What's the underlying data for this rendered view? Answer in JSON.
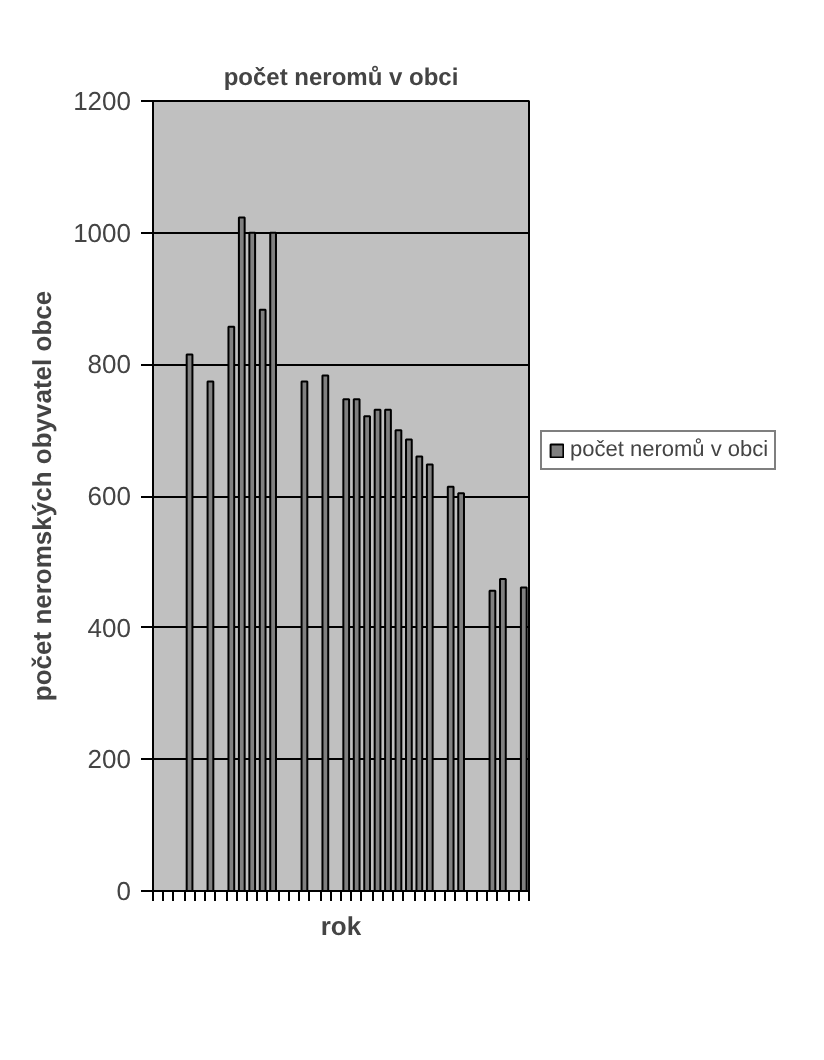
{
  "chart_data": {
    "type": "bar",
    "title": "počet neromů v obci",
    "xlabel": "rok",
    "ylabel": "počet neromských obyvatel obce",
    "categories": [
      null,
      null,
      null,
      null,
      null,
      null,
      null,
      null,
      null,
      null,
      null,
      null,
      null,
      null,
      null,
      null,
      null,
      null,
      null,
      null,
      null,
      null,
      null,
      null,
      null,
      null,
      null,
      null,
      null,
      null,
      null,
      null,
      null,
      null,
      null,
      null
    ],
    "series": [
      {
        "name": "počet neromů v obci",
        "color": "#808080",
        "values": [
          null,
          null,
          null,
          815,
          null,
          774,
          null,
          857,
          1023,
          1000,
          883,
          1000,
          null,
          null,
          774,
          null,
          783,
          null,
          747,
          747,
          721,
          731,
          731,
          700,
          686,
          660,
          648,
          null,
          614,
          604,
          null,
          null,
          456,
          474,
          null,
          461
        ]
      }
    ],
    "ylim": [
      0,
      1200
    ],
    "yticks": [
      0,
      200,
      400,
      600,
      800,
      1000,
      1200
    ],
    "grid": "y",
    "legend": "right"
  }
}
